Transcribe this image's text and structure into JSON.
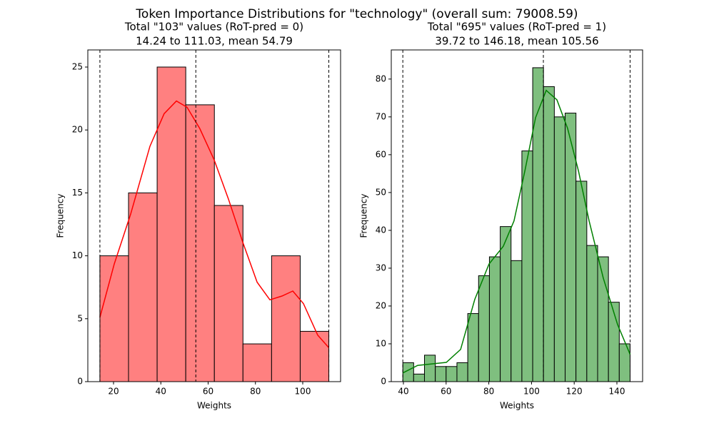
{
  "title": "Token Importance Distributions for \"technology\" (overall  sum: 79008.59)",
  "chart_data": [
    {
      "type": "histogram",
      "title": "Total \"103\" values (RoT-pred = 0)",
      "subtitle": "14.24 to 111.03, mean 54.79",
      "xlabel": "Weights",
      "ylabel": "Frequency",
      "color": "#ff8080",
      "bins": [
        14.24,
        26.34,
        38.44,
        50.54,
        62.64,
        74.73,
        86.83,
        98.93,
        111.03
      ],
      "counts": [
        10,
        15,
        25,
        22,
        14,
        3,
        10,
        4
      ],
      "kde": {
        "color": "#ff0000",
        "x": [
          14.24,
          20.3,
          27.2,
          35.4,
          41.4,
          46.6,
          51.1,
          56.5,
          62.6,
          68.6,
          74.6,
          80.7,
          86.1,
          91.2,
          95.8,
          100.3,
          106.3,
          111.03
        ],
        "y": [
          5.1,
          9.35,
          13.3,
          18.7,
          21.3,
          22.3,
          21.8,
          20.1,
          17.6,
          14.5,
          11.1,
          7.9,
          6.5,
          6.8,
          7.2,
          6.2,
          3.7,
          2.7
        ]
      },
      "vlines": [
        14.24,
        54.79,
        111.03
      ],
      "xlim": [
        9.13,
        116.0
      ],
      "ylim": [
        0,
        26.36
      ],
      "xticks": [
        20,
        40,
        60,
        80,
        100
      ],
      "yticks": [
        0,
        5,
        10,
        15,
        20,
        25
      ]
    },
    {
      "type": "histogram",
      "title": "Total \"695\" values (RoT-pred = 1)",
      "subtitle": "39.72 to 146.18, mean 105.56",
      "xlabel": "Weights",
      "ylabel": "Frequency",
      "color": "#7fbf7f",
      "bins": [
        39.72,
        44.79,
        49.86,
        54.93,
        60.0,
        65.07,
        70.14,
        75.21,
        80.28,
        85.35,
        90.42,
        95.49,
        100.56,
        105.62,
        110.69,
        115.76,
        120.83,
        125.9,
        130.97,
        136.04,
        141.11,
        146.18
      ],
      "counts": [
        5,
        2,
        7,
        4,
        4,
        5,
        18,
        28,
        33,
        41,
        32,
        61,
        83,
        78,
        70,
        71,
        53,
        36,
        33,
        21,
        10
      ],
      "kde": {
        "color": "#008000",
        "x": [
          39.72,
          46.7,
          53.4,
          60.1,
          66.8,
          73.4,
          80.1,
          86.8,
          91.8,
          96.9,
          101.9,
          106.9,
          111.9,
          116.9,
          122.0,
          127.0,
          133.6,
          140.3,
          146.18
        ],
        "y": [
          2.3,
          4.3,
          4.7,
          5.1,
          8.5,
          21.7,
          31.1,
          35.8,
          42.5,
          55.7,
          69.8,
          77.0,
          74.5,
          67.0,
          55.7,
          42.5,
          27.4,
          15.1,
          7.2
        ]
      },
      "vlines": [
        39.72,
        105.56,
        146.18
      ],
      "xlim": [
        34.31,
        152.04
      ],
      "ylim": [
        0,
        87.7
      ],
      "xticks": [
        40,
        60,
        80,
        100,
        120,
        140
      ],
      "yticks": [
        0,
        10,
        20,
        30,
        40,
        50,
        60,
        70,
        80
      ]
    }
  ]
}
